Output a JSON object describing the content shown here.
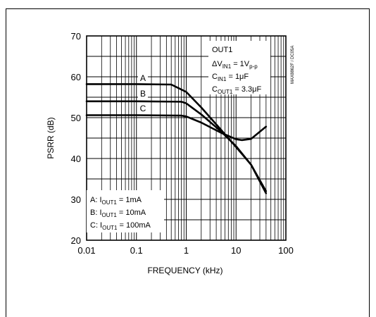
{
  "chart_data": {
    "type": "line",
    "x_scale": "log",
    "xlim": [
      0.01,
      100
    ],
    "ylim": [
      20,
      70
    ],
    "xlabel": "FREQUENCY (kHz)",
    "ylabel": "PSRR (dB)",
    "x_ticks": [
      "0.01",
      "0.1",
      "1",
      "10",
      "100"
    ],
    "y_ticks": [
      "20",
      "30",
      "40",
      "50",
      "60",
      "70"
    ],
    "grid": true,
    "series": [
      {
        "name": "A",
        "x": [
          0.01,
          0.1,
          0.5,
          1,
          2,
          5,
          10,
          20,
          40
        ],
        "y": [
          58.2,
          58.2,
          58.1,
          56.3,
          52.5,
          47.0,
          42.8,
          38.5,
          32.0
        ]
      },
      {
        "name": "B",
        "x": [
          0.01,
          0.1,
          0.8,
          1,
          2,
          5,
          10,
          20,
          40
        ],
        "y": [
          54.0,
          54.0,
          53.9,
          53.5,
          50.8,
          46.6,
          43.0,
          38.5,
          31.5
        ]
      },
      {
        "name": "C",
        "x": [
          0.01,
          0.1,
          0.8,
          1,
          2,
          5,
          10,
          13,
          20,
          40
        ],
        "y": [
          50.6,
          50.6,
          50.5,
          50.3,
          48.8,
          46.3,
          44.7,
          44.5,
          44.8,
          47.8
        ]
      }
    ],
    "series_labels": {
      "A": "A",
      "B": "B",
      "C": "C"
    },
    "conditions_box": {
      "line1": "OUT1",
      "line2_main": "ΔV",
      "line2_sub": "IN1",
      "line2_eq": " = 1V",
      "line2_sub2": "p-p",
      "line3_main": "C",
      "line3_sub": "IN1",
      "line3_eq": " = 1μF",
      "line4_main": "C",
      "line4_sub": "OUT1",
      "line4_eq": " = 3.3μF"
    },
    "legend_box": [
      {
        "prefix": "A: I",
        "sub": "OUT1",
        "suffix": " = 1mA"
      },
      {
        "prefix": "B: I",
        "sub": "OUT1",
        "suffix": " = 10mA"
      },
      {
        "prefix": "C: I",
        "sub": "OUT1",
        "suffix": " = 100mA"
      }
    ],
    "figure_code": "MAX8862F / DC05A"
  }
}
